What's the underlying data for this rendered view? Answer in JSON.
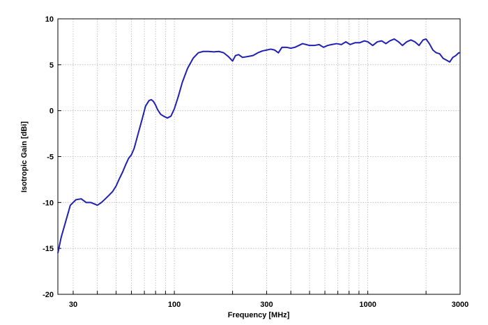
{
  "chart_data": {
    "type": "line",
    "title": "",
    "xlabel": "Frequency [MHz]",
    "ylabel": "Isotropic Gain [dBi]",
    "xscale": "log",
    "xlim": [
      25,
      3000
    ],
    "ylim": [
      -20,
      10
    ],
    "grid": true,
    "line_color": "#1f1fb4",
    "x_ticks": [
      30,
      100,
      300,
      1000,
      3000
    ],
    "x_tick_labels": [
      "30",
      "100",
      "300",
      "1000",
      "3000"
    ],
    "x_minor_grid": [
      40,
      50,
      60,
      70,
      80,
      90,
      200,
      400,
      500,
      600,
      700,
      800,
      900,
      2000
    ],
    "y_ticks": [
      -20,
      -15,
      -10,
      -5,
      0,
      5,
      10
    ],
    "y_tick_labels": [
      "-20",
      "-15",
      "-10",
      "-5",
      "0",
      "5",
      "10"
    ],
    "series": [
      {
        "x": [
          25,
          26,
          27.5,
          29,
          31,
          33,
          35,
          37,
          39,
          40,
          42,
          44,
          46,
          48,
          50,
          52,
          54,
          56,
          58,
          60,
          62,
          65,
          68,
          71,
          74,
          76,
          78,
          80,
          82,
          85,
          88,
          92,
          96,
          100,
          105,
          110,
          117,
          125,
          133,
          141,
          150,
          160,
          170,
          180,
          190,
          200,
          207,
          215,
          225,
          240,
          255,
          270,
          285,
          300,
          315,
          330,
          345,
          360,
          380,
          400,
          420,
          440,
          460,
          480,
          500,
          530,
          560,
          590,
          620,
          650,
          690,
          730,
          770,
          810,
          860,
          910,
          960,
          1000,
          1060,
          1120,
          1180,
          1240,
          1300,
          1370,
          1440,
          1510,
          1590,
          1670,
          1750,
          1840,
          1930,
          2000,
          2080,
          2170,
          2260,
          2350,
          2450,
          2550,
          2650,
          2750,
          2850,
          2950,
          3000
        ],
        "y": [
          -15.5,
          -13.8,
          -12,
          -10.3,
          -9.7,
          -9.6,
          -10,
          -10,
          -10.2,
          -10.3,
          -10,
          -9.6,
          -9.2,
          -8.8,
          -8.2,
          -7.4,
          -6.7,
          -5.9,
          -5.2,
          -4.8,
          -4.1,
          -2.5,
          -1,
          0.5,
          1.1,
          1.2,
          1.0,
          0.6,
          0.1,
          -0.4,
          -0.6,
          -0.8,
          -0.6,
          0.2,
          1.6,
          3.1,
          4.6,
          5.7,
          6.3,
          6.45,
          6.45,
          6.4,
          6.45,
          6.3,
          5.9,
          5.4,
          6.0,
          6.1,
          5.8,
          5.9,
          6.0,
          6.3,
          6.5,
          6.6,
          6.7,
          6.6,
          6.3,
          6.9,
          6.9,
          6.8,
          6.9,
          7.1,
          7.3,
          7.2,
          7.1,
          7.1,
          7.2,
          6.9,
          7.1,
          7.2,
          7.3,
          7.2,
          7.5,
          7.2,
          7.4,
          7.4,
          7.6,
          7.5,
          7.1,
          7.5,
          7.6,
          7.3,
          7.6,
          7.8,
          7.5,
          7.1,
          7.5,
          7.7,
          7.5,
          7.1,
          7.7,
          7.8,
          7.3,
          6.6,
          6.3,
          6.2,
          5.7,
          5.5,
          5.3,
          5.8,
          6.0,
          6.3,
          6.3
        ]
      }
    ]
  }
}
